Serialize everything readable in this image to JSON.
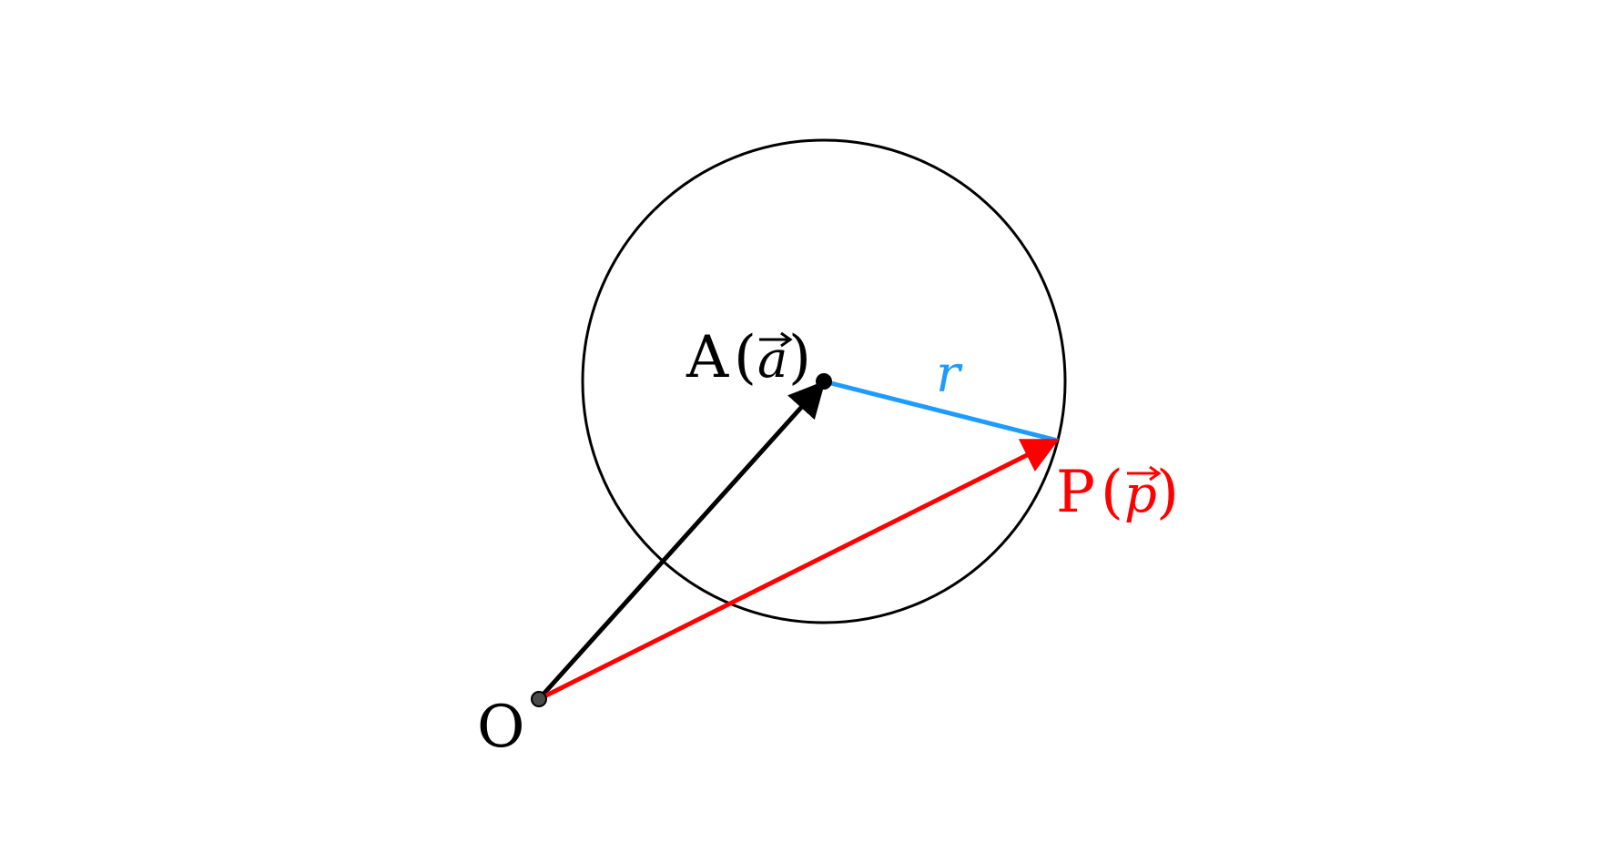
{
  "diagram": {
    "labels": {
      "origin": "O",
      "center_point": "A",
      "center_vector": "a",
      "surface_point": "P",
      "surface_vector": "p",
      "radius": "r",
      "paren_open": "(",
      "paren_close": ")"
    },
    "colors": {
      "circle": "#000000",
      "vector_a": "#000000",
      "vector_p": "#ff0000",
      "radius": "#1e9bff",
      "point_fill_a": "#000000",
      "point_fill_o": "#4a4a4a"
    }
  }
}
